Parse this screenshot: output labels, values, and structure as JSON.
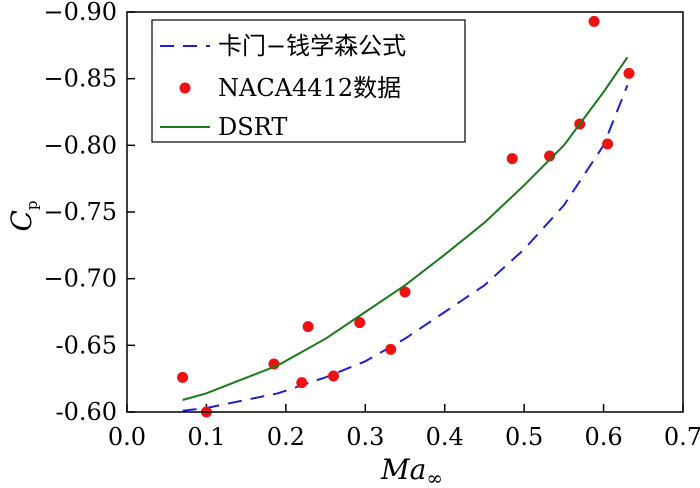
{
  "chart_data": {
    "type": "line",
    "xlabel": "Ma∞",
    "ylabel": "Cp",
    "xlim": [
      0.0,
      0.7
    ],
    "ylim": [
      -0.6,
      -0.9
    ],
    "y_axis_inverted": true,
    "grid": false,
    "legend_placement": "top-left",
    "x_ticks": [
      "0.0",
      "0.1",
      "0.2",
      "0.3",
      "0.4",
      "0.5",
      "0.6",
      "0.7"
    ],
    "y_ticks": [
      "−0.90",
      "−0.85",
      "−0.80",
      "−0.75",
      "−0.70",
      "-0.65",
      "-0.60"
    ],
    "series": [
      {
        "name": "卡门−钱学森公式",
        "style": "dashed",
        "color": "#1f1fcc",
        "points": [
          [
            0.07,
            -0.601
          ],
          [
            0.1,
            -0.603
          ],
          [
            0.19,
            -0.614
          ],
          [
            0.25,
            -0.626
          ],
          [
            0.3,
            -0.638
          ],
          [
            0.35,
            -0.655
          ],
          [
            0.4,
            -0.675
          ],
          [
            0.45,
            -0.695
          ],
          [
            0.5,
            -0.722
          ],
          [
            0.55,
            -0.755
          ],
          [
            0.6,
            -0.8
          ],
          [
            0.63,
            -0.845
          ]
        ]
      },
      {
        "name": "NACA4412数据",
        "style": "markers",
        "color": "#ee1111",
        "points": [
          [
            0.07,
            -0.626
          ],
          [
            0.1,
            -0.6
          ],
          [
            0.185,
            -0.636
          ],
          [
            0.22,
            -0.622
          ],
          [
            0.228,
            -0.664
          ],
          [
            0.26,
            -0.627
          ],
          [
            0.293,
            -0.667
          ],
          [
            0.332,
            -0.647
          ],
          [
            0.35,
            -0.69
          ],
          [
            0.485,
            -0.79
          ],
          [
            0.532,
            -0.792
          ],
          [
            0.57,
            -0.816
          ],
          [
            0.588,
            -0.893
          ],
          [
            0.605,
            -0.801
          ],
          [
            0.632,
            -0.854
          ]
        ]
      },
      {
        "name": "DSRT",
        "style": "solid",
        "color": "#1a7a1a",
        "points": [
          [
            0.07,
            -0.609
          ],
          [
            0.1,
            -0.614
          ],
          [
            0.19,
            -0.635
          ],
          [
            0.25,
            -0.655
          ],
          [
            0.3,
            -0.675
          ],
          [
            0.35,
            -0.695
          ],
          [
            0.4,
            -0.718
          ],
          [
            0.45,
            -0.742
          ],
          [
            0.5,
            -0.77
          ],
          [
            0.55,
            -0.8
          ],
          [
            0.6,
            -0.84
          ],
          [
            0.63,
            -0.866
          ]
        ]
      }
    ]
  }
}
